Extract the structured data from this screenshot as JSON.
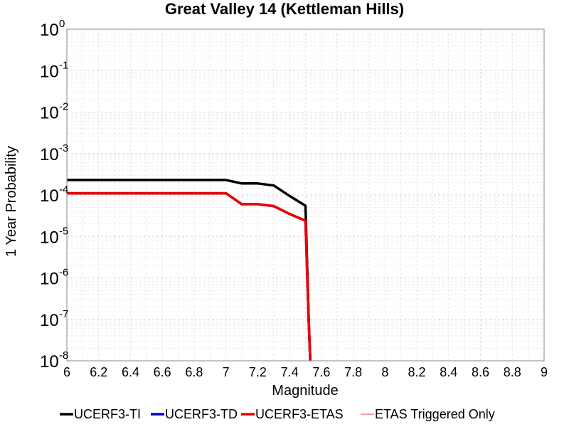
{
  "chart_data": {
    "type": "line",
    "title": "Great Valley 14 (Kettleman Hills)",
    "xlabel": "Magnitude",
    "ylabel": "1 Year Probability",
    "xlim": [
      6,
      9
    ],
    "ylim": [
      1e-08,
      1
    ],
    "y_scale": "log",
    "grid": true,
    "legend_position": "bottom",
    "x_ticks": [
      "6",
      "6.2",
      "6.4",
      "6.6",
      "6.8",
      "7",
      "7.2",
      "7.4",
      "7.6",
      "7.8",
      "8",
      "8.2",
      "8.4",
      "8.6",
      "8.8",
      "9"
    ],
    "y_ticks": [
      {
        "base": "10",
        "exp": "0",
        "value": 1
      },
      {
        "base": "10",
        "exp": "-1",
        "value": 0.1
      },
      {
        "base": "10",
        "exp": "-2",
        "value": 0.01
      },
      {
        "base": "10",
        "exp": "-3",
        "value": 0.001
      },
      {
        "base": "10",
        "exp": "-4",
        "value": 0.0001
      },
      {
        "base": "10",
        "exp": "-5",
        "value": 1e-05
      },
      {
        "base": "10",
        "exp": "-6",
        "value": 1e-06
      },
      {
        "base": "10",
        "exp": "-7",
        "value": 1e-07
      },
      {
        "base": "10",
        "exp": "-8",
        "value": 1e-08
      }
    ],
    "series": [
      {
        "name": "UCERF3-TI",
        "color": "#000000",
        "x": [
          6.0,
          6.1,
          6.2,
          6.3,
          6.4,
          6.5,
          6.6,
          6.7,
          6.8,
          6.9,
          7.0,
          7.1,
          7.2,
          7.3,
          7.4,
          7.5,
          7.52,
          7.53
        ],
        "y": [
          0.00023,
          0.00023,
          0.00023,
          0.00023,
          0.00023,
          0.00023,
          0.00023,
          0.00023,
          0.00023,
          0.00023,
          0.00023,
          0.00019,
          0.00019,
          0.00017,
          9.5e-05,
          5.5e-05,
          1e-07,
          1e-08
        ]
      },
      {
        "name": "UCERF3-TD",
        "color": "#0000dd",
        "x": [
          6.0,
          6.1,
          6.2,
          6.3,
          6.4,
          6.5,
          6.6,
          6.7,
          6.8,
          6.9,
          7.0,
          7.1,
          7.2,
          7.3,
          7.4,
          7.5,
          7.52,
          7.53
        ],
        "y": [
          0.00011,
          0.00011,
          0.00011,
          0.00011,
          0.00011,
          0.00011,
          0.00011,
          0.00011,
          0.00011,
          0.00011,
          0.00011,
          6e-05,
          6e-05,
          5.4e-05,
          3.5e-05,
          2.4e-05,
          1e-07,
          1e-08
        ]
      },
      {
        "name": "UCERF3-ETAS",
        "color": "#ee0000",
        "x": [
          6.0,
          6.1,
          6.2,
          6.3,
          6.4,
          6.5,
          6.6,
          6.7,
          6.8,
          6.9,
          7.0,
          7.1,
          7.2,
          7.3,
          7.4,
          7.5,
          7.52,
          7.53
        ],
        "y": [
          0.00011,
          0.00011,
          0.00011,
          0.00011,
          0.00011,
          0.00011,
          0.00011,
          0.00011,
          0.00011,
          0.00011,
          0.00011,
          6e-05,
          6e-05,
          5.4e-05,
          3.5e-05,
          2.4e-05,
          1e-07,
          1e-08
        ]
      },
      {
        "name": "ETAS Triggered Only",
        "color": "#ff9999",
        "x": [],
        "y": []
      }
    ]
  }
}
